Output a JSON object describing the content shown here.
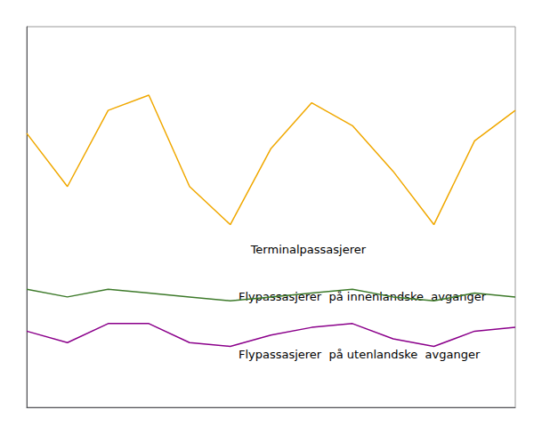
{
  "chart_data": {
    "type": "line",
    "x": [
      0,
      1,
      2,
      3,
      4,
      5,
      6,
      7,
      8,
      9,
      10,
      11,
      12
    ],
    "series": [
      {
        "name": "Terminalpassasjerer",
        "color": "#f0a800",
        "values": [
          72,
          58,
          78,
          82,
          58,
          48,
          68,
          80,
          74,
          62,
          48,
          70,
          78
        ]
      },
      {
        "name": "Flypassasjerer  på innenlandske  avganger",
        "color": "#3d7a2a",
        "values": [
          31,
          29,
          31,
          30,
          29,
          28,
          29,
          30,
          31,
          29,
          28,
          30,
          29
        ]
      },
      {
        "name": "Flypassasjerer  på utenlandske  avganger",
        "color": "#8b008b",
        "values": [
          20,
          17,
          22,
          22,
          17,
          16,
          19,
          21,
          22,
          18,
          16,
          20,
          21
        ]
      }
    ],
    "annotations": [
      {
        "text": "Terminalpassasjerer",
        "x": 5.5,
        "y": 43
      },
      {
        "text": "Flypassasjerer  på innenlandske  avganger",
        "x": 5.2,
        "y": 27.5
      },
      {
        "text": "Flypassasjerer  på utenlandske  avganger",
        "x": 5.2,
        "y": 15.5
      }
    ],
    "xlim": [
      0,
      12
    ],
    "ylim": [
      0,
      100
    ],
    "xticks": [],
    "yticks": [],
    "grid": false,
    "tick_labels": false
  }
}
